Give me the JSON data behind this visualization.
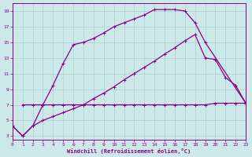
{
  "xlabel": "Windchill (Refroidissement éolien,°C)",
  "background_color": "#cce8e8",
  "grid_color": "#aacfcf",
  "line_color": "#880088",
  "xlim": [
    0,
    23
  ],
  "ylim": [
    2.5,
    20
  ],
  "xticks": [
    0,
    1,
    2,
    3,
    4,
    5,
    6,
    7,
    8,
    9,
    10,
    11,
    12,
    13,
    14,
    15,
    16,
    17,
    18,
    19,
    20,
    21,
    22,
    23
  ],
  "yticks": [
    3,
    5,
    7,
    9,
    11,
    13,
    15,
    17,
    19
  ],
  "line1_x": [
    1,
    2,
    3,
    4,
    5,
    6,
    7,
    8,
    9,
    10,
    11,
    12,
    13,
    14,
    15,
    16,
    17,
    18,
    19,
    20,
    21,
    22,
    23
  ],
  "line1_y": [
    7.0,
    7.0,
    7.0,
    7.0,
    7.0,
    7.0,
    7.0,
    7.0,
    7.0,
    7.0,
    7.0,
    7.0,
    7.0,
    7.0,
    7.0,
    7.0,
    7.0,
    7.0,
    7.0,
    7.2,
    7.2,
    7.2,
    7.2
  ],
  "line2_x": [
    0,
    1,
    2,
    3,
    4,
    5,
    6,
    7,
    8,
    9,
    10,
    11,
    12,
    13,
    14,
    15,
    16,
    17,
    18,
    19,
    23
  ],
  "line2_y": [
    4.3,
    3.0,
    4.3,
    7.0,
    9.5,
    12.3,
    14.7,
    15.0,
    15.5,
    16.2,
    17.0,
    17.5,
    18.0,
    18.5,
    19.2,
    19.2,
    19.2,
    19.0,
    17.5,
    15.0,
    7.2
  ],
  "line3_x": [
    0,
    1,
    2,
    3,
    4,
    5,
    6,
    7,
    8,
    9,
    10,
    11,
    12,
    13,
    14,
    15,
    16,
    17,
    18,
    19,
    20,
    21,
    22,
    23
  ],
  "line3_y": [
    4.3,
    3.0,
    4.3,
    5.0,
    5.5,
    6.0,
    6.5,
    7.0,
    7.8,
    8.5,
    9.3,
    10.2,
    11.0,
    11.8,
    12.6,
    13.5,
    14.3,
    15.2,
    16.0,
    13.0,
    12.8,
    10.5,
    9.5,
    7.2
  ]
}
